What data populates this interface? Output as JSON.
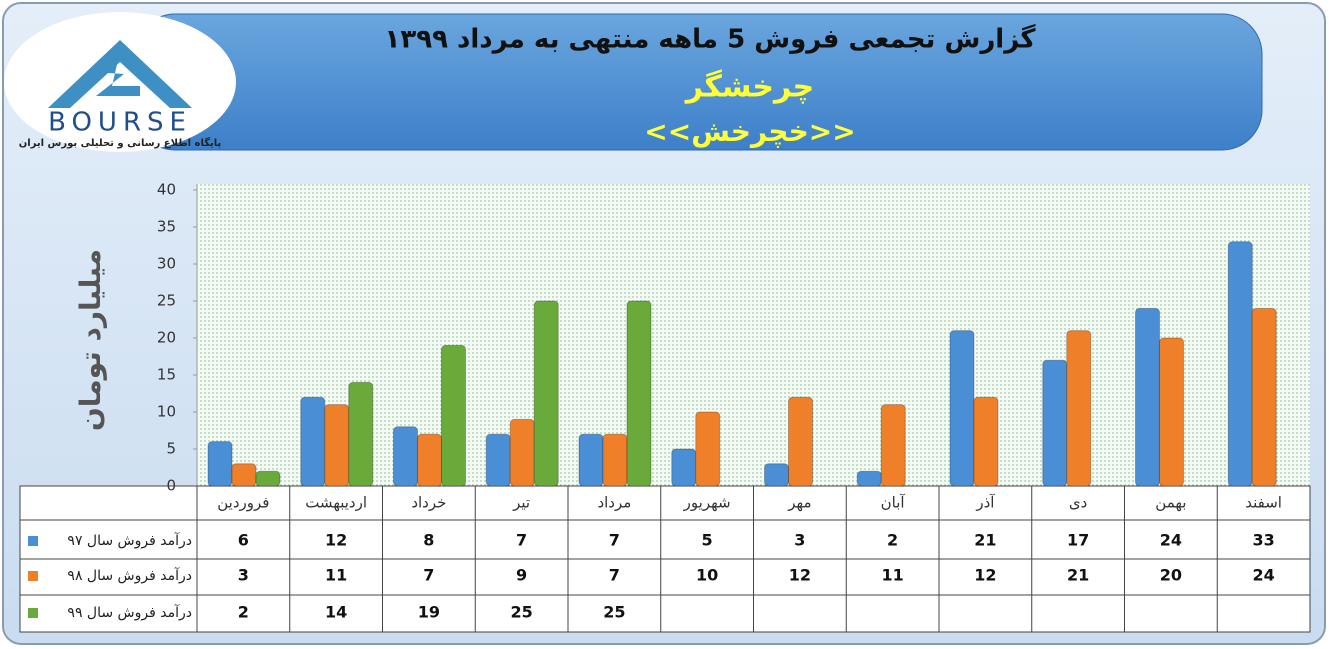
{
  "logo": {
    "brand": "BOURSE",
    "tagline": "پایگاه اطلاع رسانی و تحلیلی بورس ایران"
  },
  "chart_data": {
    "type": "bar",
    "title": "گزارش تجمعی فروش  5 ماهه منتهی به مرداد ۱۳۹۹",
    "subtitle": "چرخشگر",
    "annotation": "<<خچرخش>>",
    "y_label": "میلیارد تومان",
    "categories": [
      "فروردین",
      "اردیبهشت",
      "خرداد",
      "تیر",
      "مرداد",
      "شهریور",
      "مهر",
      "آبان",
      "آذر",
      "دی",
      "بهمن",
      "اسفند"
    ],
    "series": [
      {
        "name": "درآمد فروش سال ۹۷",
        "color": "#4a8fd6",
        "values": [
          6,
          12,
          8,
          7,
          7,
          5,
          3,
          2,
          21,
          17,
          24,
          33
        ]
      },
      {
        "name": "درآمد فروش سال ۹۸",
        "color": "#f07f2a",
        "values": [
          3,
          11,
          7,
          9,
          7,
          10,
          12,
          11,
          12,
          21,
          20,
          24
        ]
      },
      {
        "name": "درآمد فروش سال ۹۹",
        "color": "#6aaa3a",
        "values": [
          2,
          14,
          19,
          25,
          25,
          null,
          null,
          null,
          null,
          null,
          null,
          null
        ]
      }
    ],
    "ylim": [
      0,
      40
    ],
    "yticks": [
      0,
      5,
      10,
      15,
      20,
      25,
      30,
      35,
      40
    ],
    "grid": false
  }
}
